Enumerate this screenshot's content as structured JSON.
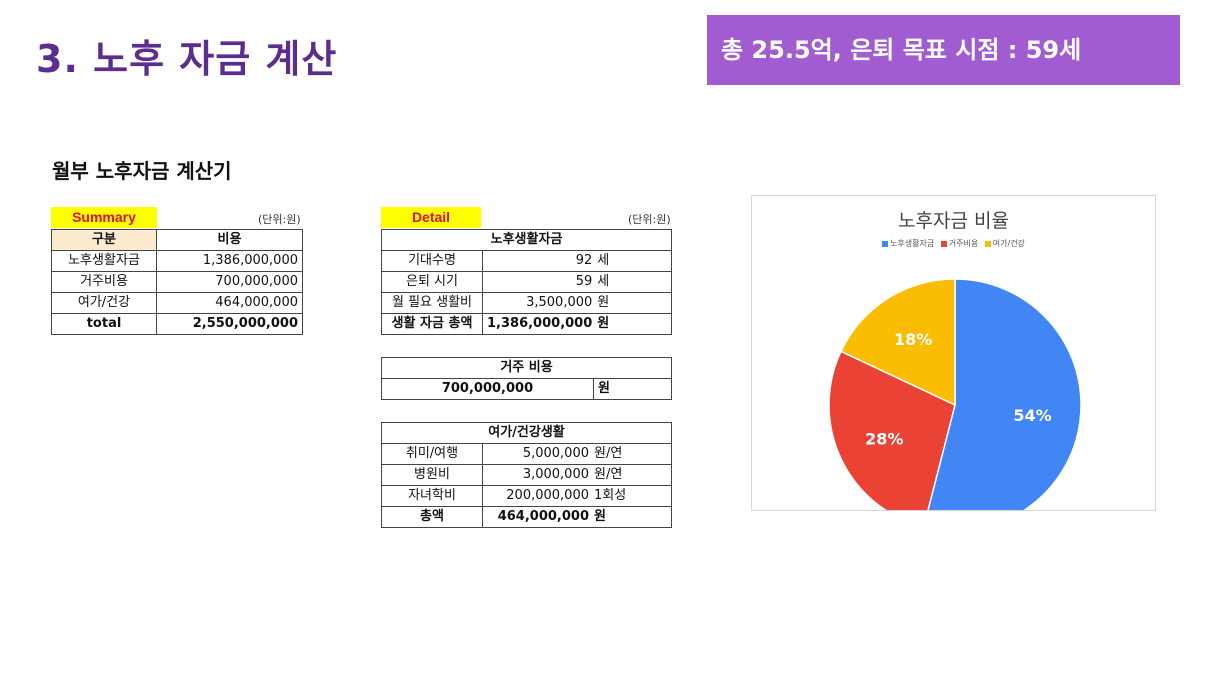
{
  "header": {
    "title": "3. 노후 자금 계산",
    "badge": "총 25.5억, 은퇴 목표 시점  : 59세"
  },
  "sheet": {
    "title": "월부 노후자금 계산기",
    "summary": {
      "tag": "Summary",
      "unit": "(단위:원)",
      "col_label": "구분",
      "col_value": "비용",
      "rows": [
        {
          "label": "노후생활자금",
          "value": "1,386,000,000"
        },
        {
          "label": "거주비용",
          "value": "700,000,000"
        },
        {
          "label": "여가/건강",
          "value": "464,000,000"
        }
      ],
      "total_label": "total",
      "total_value": "2,550,000,000"
    },
    "detail": {
      "tag": "Detail",
      "unit": "(단위:원)",
      "living": {
        "title": "노후생활자금",
        "rows": [
          {
            "label": "기대수명",
            "value": "92",
            "unit": "세"
          },
          {
            "label": "은퇴 시기",
            "value": "59",
            "unit": "세"
          },
          {
            "label": "월 필요 생활비",
            "value": "3,500,000",
            "unit": "원"
          }
        ],
        "total": {
          "label": "생활 자금 총액",
          "value": "1,386,000,000",
          "unit": "원"
        }
      },
      "housing": {
        "title": "거주 비용",
        "value": "700,000,000",
        "unit": "원"
      },
      "leisure": {
        "title": "여가/건강생활",
        "rows": [
          {
            "label": "취미/여행",
            "value": "5,000,000",
            "unit": "원/연"
          },
          {
            "label": "병원비",
            "value": "3,000,000",
            "unit": "원/연"
          },
          {
            "label": "자녀학비",
            "value": "200,000,000",
            "unit": "1회성"
          }
        ],
        "total": {
          "label": "총액",
          "value": "464,000,000",
          "unit": "원"
        }
      }
    }
  },
  "chart_data": {
    "type": "pie",
    "title": "노후자금 비율",
    "legend_position": "top",
    "slices": [
      {
        "name": "노후생활자금",
        "value": 54,
        "label": "54%",
        "color": "#4285f4"
      },
      {
        "name": "거주비용",
        "value": 28,
        "label": "28%",
        "color": "#ea4335"
      },
      {
        "name": "여가/건강",
        "value": 18,
        "label": "18%",
        "color": "#fbbc04"
      }
    ]
  }
}
